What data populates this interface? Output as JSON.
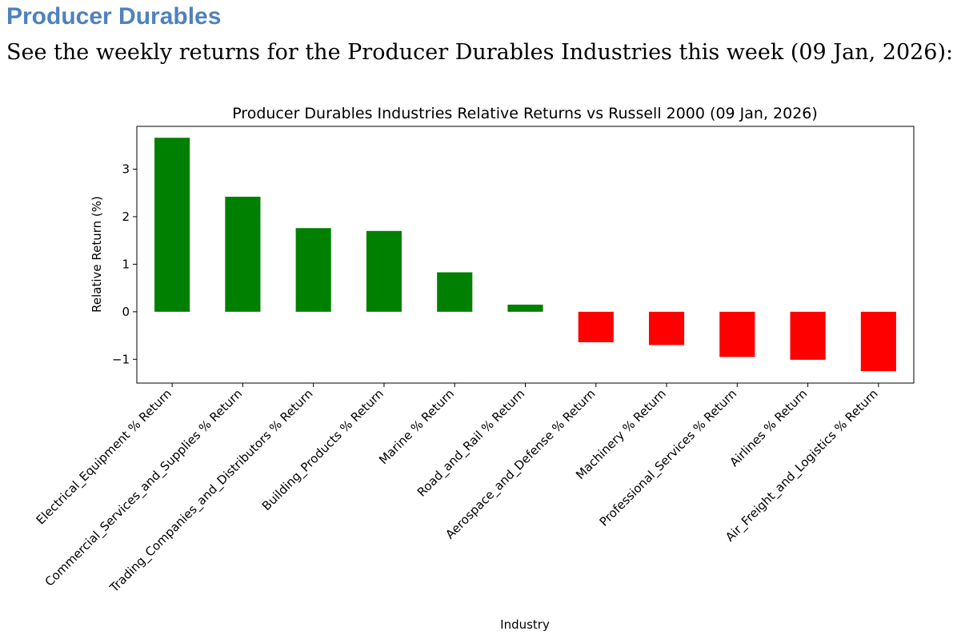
{
  "document": {
    "heading": "Producer Durables",
    "intro": "See the weekly returns for the Producer Durables Industries this week (09 Jan, 2026):"
  },
  "chart_data": {
    "type": "bar",
    "title": "Producer Durables Industries Relative Returns vs Russell 2000 (09 Jan, 2026)",
    "xlabel": "Industry",
    "ylabel": "Relative Return (%)",
    "ylim": [
      -1.5,
      3.9
    ],
    "yticks": [
      -1,
      0,
      1,
      2,
      3
    ],
    "ytick_labels": [
      "−1",
      "0",
      "1",
      "2",
      "3"
    ],
    "categories": [
      "Electrical_Equipment % Return",
      "Commercial_Services_and_Supplies % Return",
      "Trading_Companies_and_Distributors % Return",
      "Building_Products % Return",
      "Marine % Return",
      "Road_and_Rail % Return",
      "Aerospace_and_Defense % Return",
      "Machinery % Return",
      "Professional_Services % Return",
      "Airlines % Return",
      "Air_Freight_and_Logistics % Return"
    ],
    "values": [
      3.66,
      2.42,
      1.76,
      1.7,
      0.83,
      0.15,
      -0.64,
      -0.7,
      -0.95,
      -1.01,
      -1.25
    ],
    "colors": {
      "positive": "#008000",
      "negative": "#ff0000"
    },
    "grid": false
  }
}
